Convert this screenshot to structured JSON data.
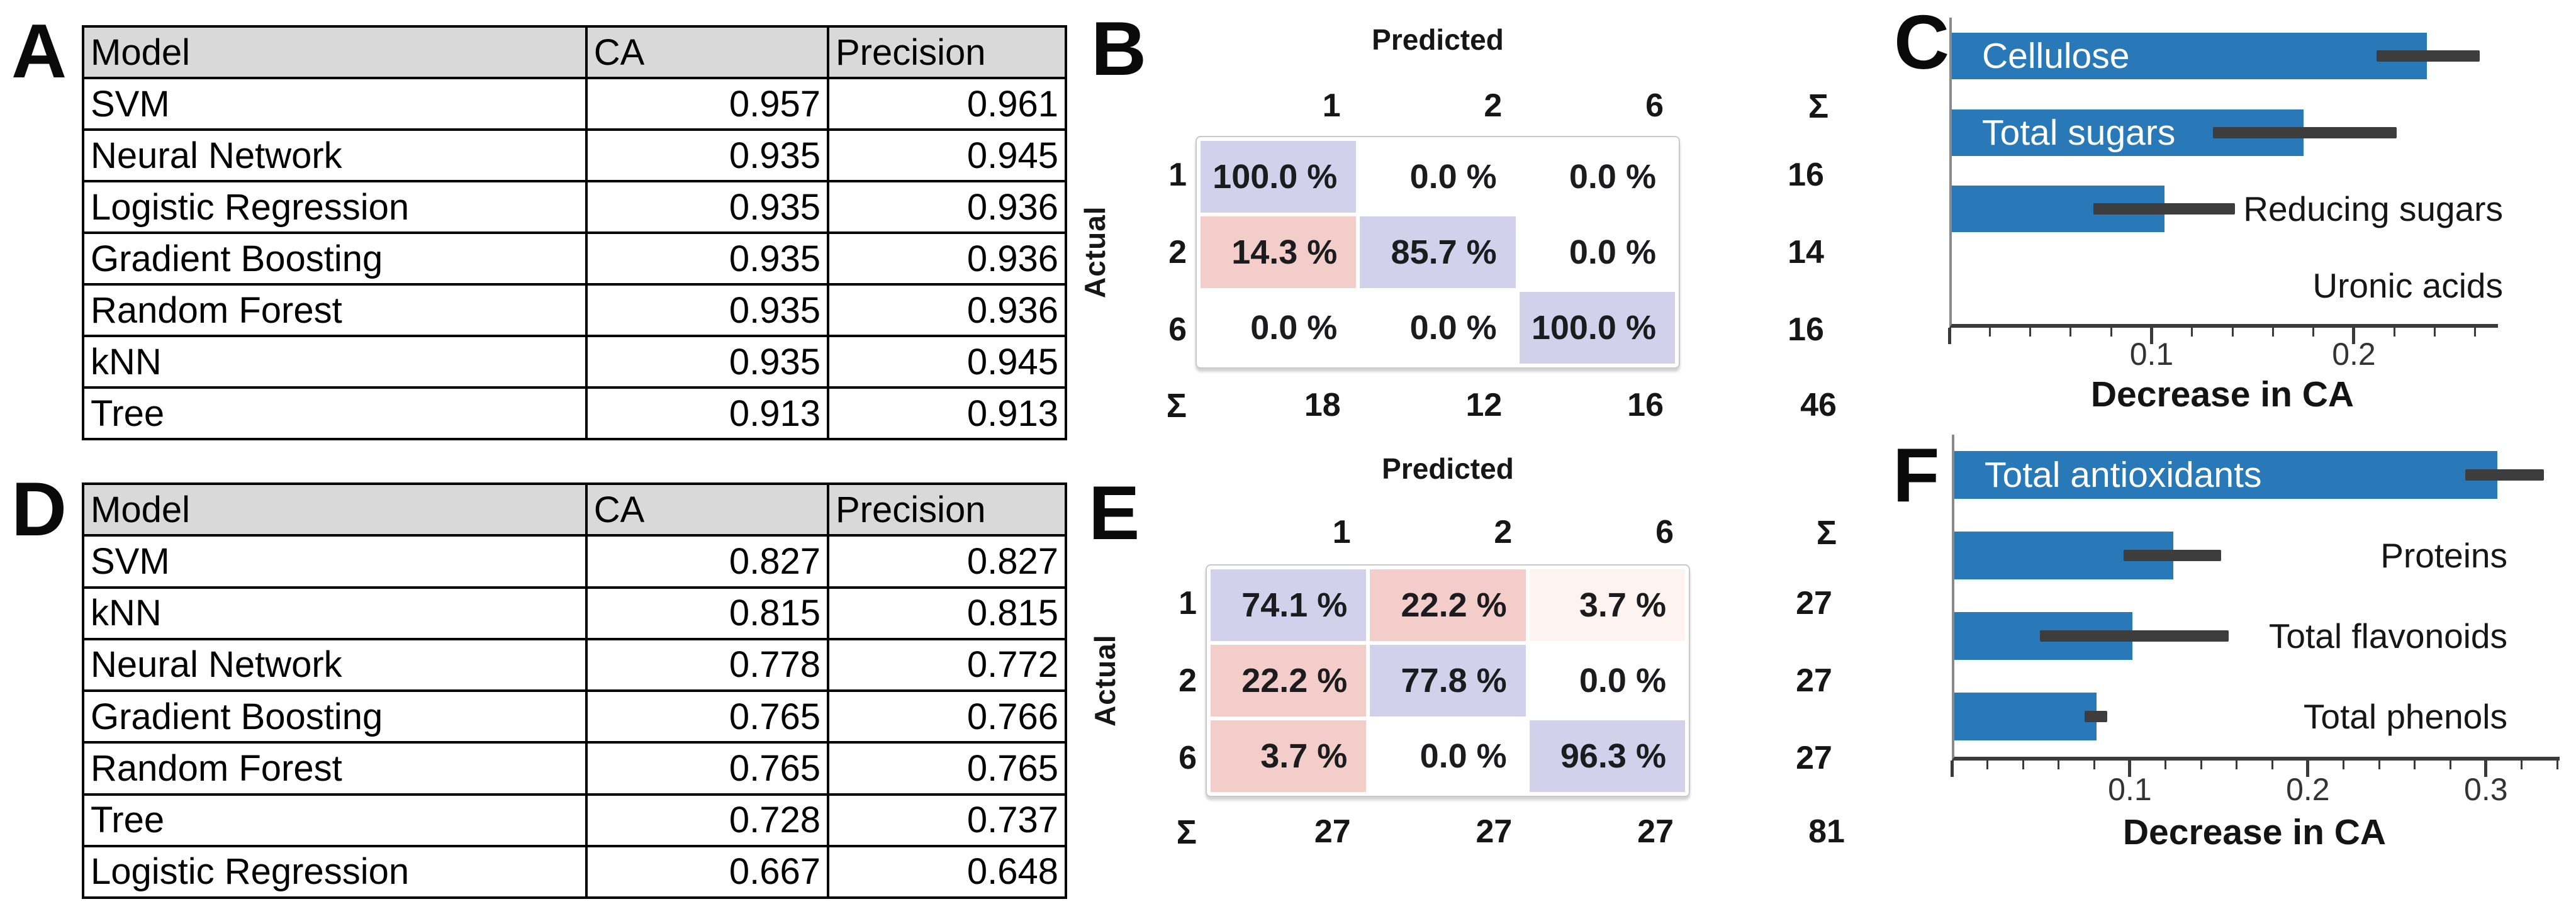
{
  "figure": {
    "description": "Six-panel machine learning results figure: model score tables, confusion matrices, and feature importance bar charts",
    "colors": {
      "bar_blue": "#2979b9",
      "error_bar": "#3d3d3d",
      "axis_line": "#3a3a3a",
      "y_axis_line": "#8a8a8a",
      "table_header_bg": "#d9d9d9",
      "table_border": "#000000",
      "cm_correct": "#d3d0ec",
      "cm_error": "#f2cdc9",
      "cm_error_light": "#fdf4f2",
      "cm_none": "#ffffff",
      "cm_box_border": "#c9c9c9",
      "bar_label_inside": "#ffffff",
      "text": "#111111"
    }
  },
  "panels": {
    "a": {
      "label": "A"
    },
    "b": {
      "label": "B"
    },
    "c": {
      "label": "C"
    },
    "d": {
      "label": "D"
    },
    "e": {
      "label": "E"
    },
    "f": {
      "label": "F"
    }
  },
  "chart_data": [
    {
      "panel": "A",
      "type": "table",
      "columns": [
        "Model",
        "CA",
        "Precision"
      ],
      "rows": [
        [
          "SVM",
          "0.957",
          "0.961"
        ],
        [
          "Neural Network",
          "0.935",
          "0.945"
        ],
        [
          "Logistic Regression",
          "0.935",
          "0.936"
        ],
        [
          "Gradient Boosting",
          "0.935",
          "0.936"
        ],
        [
          "Random Forest",
          "0.935",
          "0.936"
        ],
        [
          "kNN",
          "0.935",
          "0.945"
        ],
        [
          "Tree",
          "0.913",
          "0.913"
        ]
      ]
    },
    {
      "panel": "B",
      "type": "heatmap",
      "x_label": "Predicted",
      "y_label": "Actual",
      "sum_symbol": "Σ",
      "x_categories": [
        "1",
        "2",
        "6"
      ],
      "y_categories": [
        "1",
        "2",
        "6"
      ],
      "values_percent": [
        [
          100.0,
          0.0,
          0.0
        ],
        [
          14.3,
          85.7,
          0.0
        ],
        [
          0.0,
          0.0,
          100.0
        ]
      ],
      "cell_colors": [
        [
          "correct",
          "none",
          "none"
        ],
        [
          "error",
          "correct",
          "none"
        ],
        [
          "none",
          "none",
          "correct"
        ]
      ],
      "row_totals": [
        "16",
        "14",
        "16"
      ],
      "col_totals": [
        "18",
        "12",
        "16"
      ],
      "grand_total": "46"
    },
    {
      "panel": "C",
      "type": "bar",
      "orientation": "horizontal",
      "categories": [
        "Cellulose",
        "Total sugars",
        "Reducing sugars",
        "Uronic acids"
      ],
      "values": [
        0.235,
        0.174,
        0.105,
        0
      ],
      "error_low": [
        0.21,
        0.129,
        0.07,
        null
      ],
      "error_high": [
        0.261,
        0.22,
        0.14,
        null
      ],
      "xlabel": "Decrease in CA",
      "xlim": [
        0,
        0.27
      ],
      "xticks": [
        0.1,
        0.2
      ],
      "minor_tick_step": 0.02,
      "grid": false,
      "legend": "none"
    },
    {
      "panel": "D",
      "type": "table",
      "columns": [
        "Model",
        "CA",
        "Precision"
      ],
      "rows": [
        [
          "SVM",
          "0.827",
          "0.827"
        ],
        [
          "kNN",
          "0.815",
          "0.815"
        ],
        [
          "Neural Network",
          "0.778",
          "0.772"
        ],
        [
          "Gradient Boosting",
          "0.765",
          "0.766"
        ],
        [
          "Random Forest",
          "0.765",
          "0.765"
        ],
        [
          "Tree",
          "0.728",
          "0.737"
        ],
        [
          "Logistic Regression",
          "0.667",
          "0.648"
        ]
      ]
    },
    {
      "panel": "E",
      "type": "heatmap",
      "x_label": "Predicted",
      "y_label": "Actual",
      "sum_symbol": "Σ",
      "x_categories": [
        "1",
        "2",
        "6"
      ],
      "y_categories": [
        "1",
        "2",
        "6"
      ],
      "values_percent": [
        [
          74.1,
          22.2,
          3.7
        ],
        [
          22.2,
          77.8,
          0.0
        ],
        [
          3.7,
          0.0,
          96.3
        ]
      ],
      "cell_colors": [
        [
          "correct",
          "error",
          "error_light"
        ],
        [
          "error",
          "correct",
          "none"
        ],
        [
          "error",
          "none",
          "correct"
        ]
      ],
      "row_totals": [
        "27",
        "27",
        "27"
      ],
      "col_totals": [
        "27",
        "27",
        "27"
      ],
      "grand_total": "81"
    },
    {
      "panel": "F",
      "type": "bar",
      "orientation": "horizontal",
      "categories": [
        "Total antioxidants",
        "Proteins",
        "Total flavonoids",
        "Total phenols"
      ],
      "values": [
        0.305,
        0.123,
        0.1,
        0.08
      ],
      "error_low": [
        0.287,
        0.095,
        0.048,
        0.073
      ],
      "error_high": [
        0.331,
        0.15,
        0.154,
        0.086
      ],
      "xlabel": "Decrease in CA",
      "xlim": [
        0,
        0.34
      ],
      "xticks": [
        0.1,
        0.2,
        0.3
      ],
      "minor_tick_step": 0.02,
      "grid": false,
      "legend": "none"
    }
  ]
}
